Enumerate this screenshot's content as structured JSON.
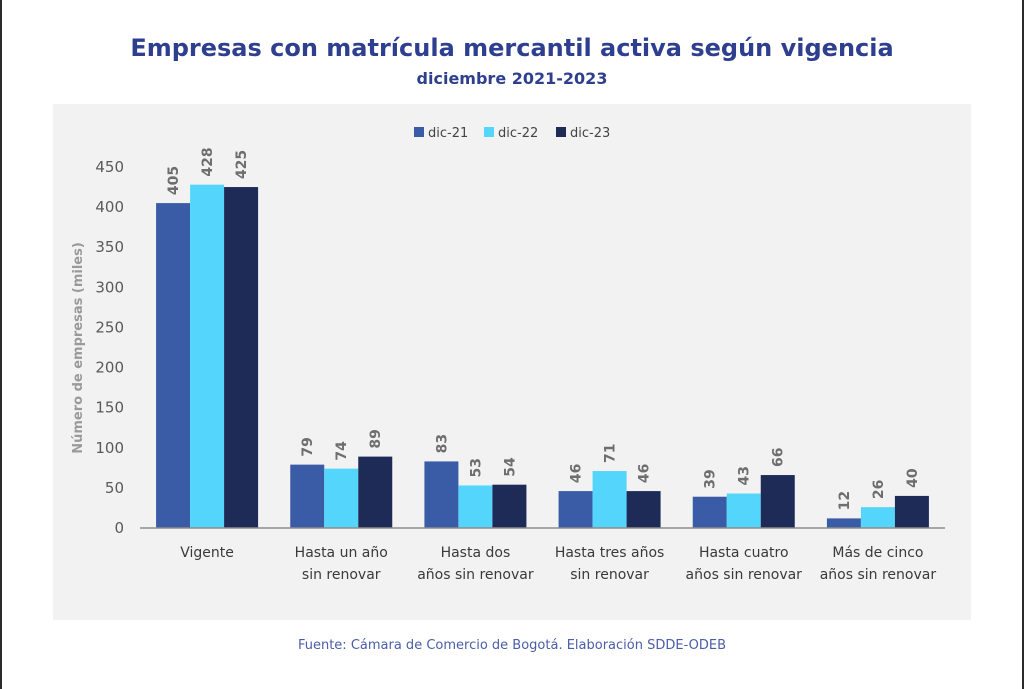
{
  "title": "Empresas con matrícula mercantil activa según vigencia",
  "subtitle": "diciembre 2021-2023",
  "source": "Fuente: Cámara de Comercio de Bogotá. Elaboración SDDE-ODEB",
  "colors": {
    "dic-21": "#3a5ca7",
    "dic-22": "#54d5fb",
    "dic-23": "#1f2b57",
    "title": "#2e3f8f"
  },
  "chart_data": {
    "type": "bar",
    "title": "Empresas con matrícula mercantil activa según vigencia",
    "subtitle": "diciembre 2021-2023",
    "ylabel": "Número de empresas (miles)",
    "xlabel": "",
    "ylim": [
      0,
      450
    ],
    "yticks": [
      0,
      50,
      100,
      150,
      200,
      250,
      300,
      350,
      400,
      450
    ],
    "grid": false,
    "legend_position": "top-center",
    "categories": [
      [
        "Vigente"
      ],
      [
        "Hasta un año",
        "sin renovar"
      ],
      [
        "Hasta dos",
        "años sin renovar"
      ],
      [
        "Hasta tres años",
        "sin renovar"
      ],
      [
        "Hasta cuatro",
        "años sin renovar"
      ],
      [
        "Más de cinco",
        "años sin renovar"
      ]
    ],
    "series": [
      {
        "name": "dic-21",
        "color": "#3a5ca7",
        "values": [
          405,
          79,
          83,
          46,
          39,
          12
        ]
      },
      {
        "name": "dic-22",
        "color": "#54d5fb",
        "values": [
          428,
          74,
          53,
          71,
          43,
          26
        ]
      },
      {
        "name": "dic-23",
        "color": "#1f2b57",
        "values": [
          425,
          89,
          54,
          46,
          66,
          40
        ]
      }
    ]
  }
}
